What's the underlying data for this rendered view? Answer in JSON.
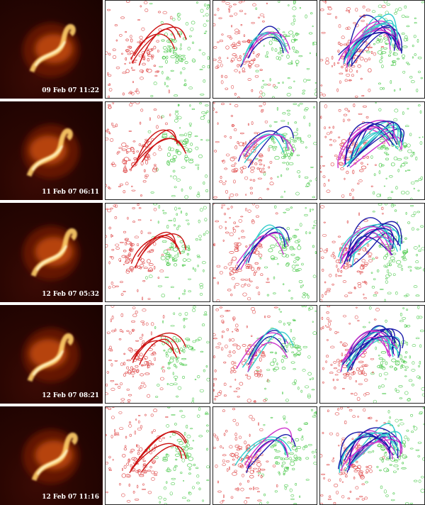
{
  "figure": {
    "rows": [
      {
        "timestamp": "09 Feb 07 11:22"
      },
      {
        "timestamp": "11 Feb 07 06:11"
      },
      {
        "timestamp": "12 Feb 07 05:32"
      },
      {
        "timestamp": "12 Feb 07 08:21"
      },
      {
        "timestamp": "12 Feb 07 11:16"
      }
    ],
    "colors": {
      "negative_polarity_contour": "#e05050",
      "positive_polarity_contour": "#55cc55",
      "field_line_red": "#cc1111",
      "field_line_blue": "#1a1aaa",
      "field_line_cyan": "#33cccc",
      "field_line_magenta": "#cc33cc",
      "panel_frame": "#222222"
    }
  }
}
